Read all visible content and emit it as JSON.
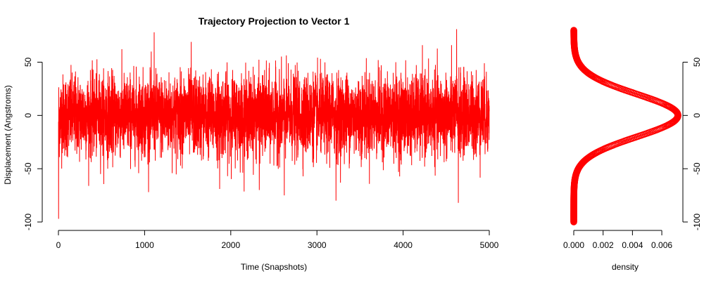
{
  "chart_data": [
    {
      "type": "line",
      "title": "Trajectory Projection to Vector 1",
      "xlabel": "Time (Snapshots)",
      "ylabel": "Displacement (Angstroms)",
      "xlim": [
        0,
        5000
      ],
      "ylim": [
        -100,
        80
      ],
      "x_ticks": [
        0,
        1000,
        2000,
        3000,
        4000,
        5000
      ],
      "y_ticks": [
        -100,
        -50,
        0,
        50
      ],
      "series_color": "#ff0000",
      "series": [
        {
          "n_points": 5000,
          "mean": 0,
          "sd": 20,
          "extremes": [
            {
              "x": 1,
              "y": -97
            },
            {
              "x": 1110,
              "y": 78
            },
            {
              "x": 4620,
              "y": 81
            },
            {
              "x": 4640,
              "y": -82
            },
            {
              "x": 3220,
              "y": -80
            },
            {
              "x": 2620,
              "y": -75
            },
            {
              "x": 2330,
              "y": -70
            },
            {
              "x": 1870,
              "y": -69
            },
            {
              "x": 1540,
              "y": 69
            }
          ]
        }
      ]
    },
    {
      "type": "scatter",
      "xlabel": "density",
      "ylabel": "",
      "xlim": [
        0,
        0.0071
      ],
      "ylim": [
        -100,
        80
      ],
      "x_ticks": [
        "0.000",
        "0.002",
        "0.004",
        "0.006"
      ],
      "y_ticks": [
        -100,
        -50,
        0,
        50
      ],
      "y_axis_side": "right",
      "marker_color": "#ff0000",
      "density_peak": {
        "y": 0,
        "x": 0.0071
      },
      "density_spread_sd": 20,
      "y_range": [
        -100,
        80
      ]
    }
  ]
}
